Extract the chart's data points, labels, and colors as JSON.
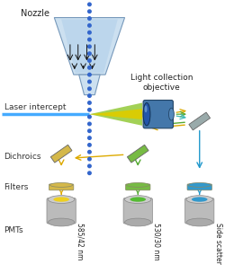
{
  "label_nozzle": "Nozzle",
  "label_laser": "Laser intercept",
  "label_light": "Light collection\nobjective",
  "label_dichroics": "Dichroics",
  "label_filters": "Filters",
  "label_pmts": "PMTs",
  "label_pmt1": "585/42 nm",
  "label_pmt2": "530/30 nm",
  "label_pmt3": "Side scatter",
  "pmt1_color": "#eed020",
  "pmt2_color": "#55bb33",
  "pmt3_color": "#3399cc",
  "dichroic1_color": "#d4b84a",
  "dichroic2_color": "#77bb44",
  "dichroic3_color": "#4488bb",
  "filter1_color": "#d4b84a",
  "filter2_color": "#77bb44",
  "filter3_color": "#3399cc",
  "laser_color": "#44aaff",
  "beam_green_color": "#99cc44",
  "beam_yellow_color": "#ddcc00",
  "arrow_yellow": "#ddaa00",
  "arrow_green": "#55aa33",
  "arrow_blue": "#2299cc",
  "arrow_teal": "#44bbbb",
  "nozzle_outer": "#cce0f0",
  "nozzle_inner": "#b8d4ec",
  "stream_color": "#3366cc",
  "obj_color": "#3366aa",
  "obj_front": "#2244aa",
  "dichroic_gray": "#99aaaa",
  "figsize": [
    2.5,
    3.04
  ],
  "dpi": 100
}
